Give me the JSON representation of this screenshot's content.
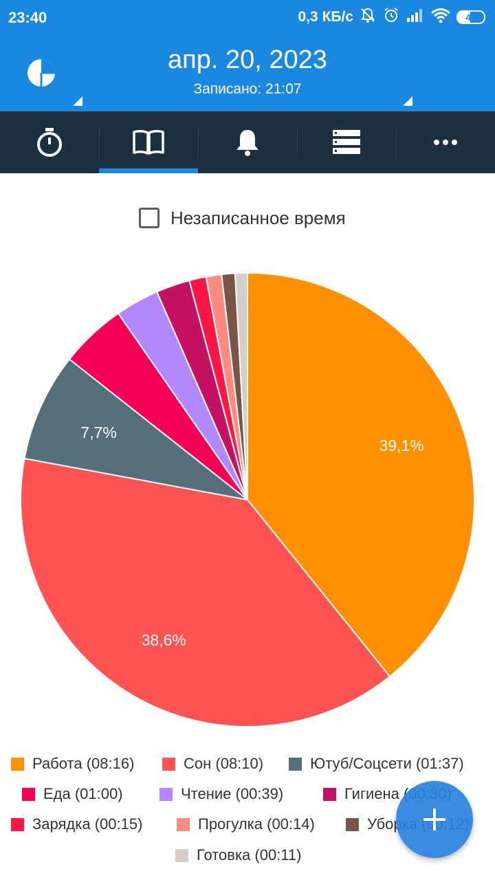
{
  "status_bar": {
    "time": "23:40",
    "network_speed": "0,3 КБ/с",
    "battery": "47",
    "icons": [
      "muted-alarm-icon",
      "alarm-clock-icon",
      "signal-icon",
      "wifi-icon",
      "battery-icon"
    ]
  },
  "header": {
    "date": "апр. 20, 2023",
    "recorded": "Записано: 21:07",
    "logo_icon": "pie-chart-logo-icon"
  },
  "tabs": [
    {
      "icon": "stopwatch-icon",
      "active": false
    },
    {
      "icon": "book-icon",
      "active": true
    },
    {
      "icon": "bell-icon",
      "active": false
    },
    {
      "icon": "list-icon",
      "active": false
    },
    {
      "icon": "more-icon",
      "active": false
    }
  ],
  "unrecorded_toggle": {
    "label": "Незаписанное время",
    "checked": false
  },
  "chart_data": {
    "type": "pie",
    "slices": [
      {
        "label": "Работа (08:16)",
        "value": 39.1,
        "color": "#ff9100",
        "data_label": "39,1%"
      },
      {
        "label": "Сон (08:10)",
        "value": 38.6,
        "color": "#ff5252",
        "data_label": "38,6%"
      },
      {
        "label": "Ютуб/Соцсети (01:37)",
        "value": 7.7,
        "color": "#546e7a",
        "data_label": "7,7%"
      },
      {
        "label": "Еда (01:00)",
        "value": 4.7,
        "color": "#f50057",
        "data_label": ""
      },
      {
        "label": "Чтение (00:39)",
        "value": 3.1,
        "color": "#b388ff",
        "data_label": ""
      },
      {
        "label": "Гигиена (00:30)",
        "value": 2.4,
        "color": "#c51162",
        "data_label": ""
      },
      {
        "label": "Зарядка  (00:15)",
        "value": 1.2,
        "color": "#ff1744",
        "data_label": ""
      },
      {
        "label": "Прогулка (00:14)",
        "value": 1.1,
        "color": "#ff8a80",
        "data_label": ""
      },
      {
        "label": "Уборка (00:12)",
        "value": 0.95,
        "color": "#795548",
        "data_label": ""
      },
      {
        "label": "Готовка (00:11)",
        "value": 0.87,
        "color": "#d7ccc8",
        "data_label": ""
      }
    ]
  },
  "fab": {
    "icon": "plus-icon"
  }
}
